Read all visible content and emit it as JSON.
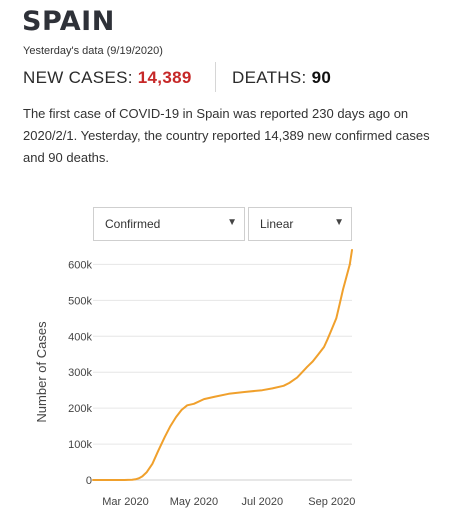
{
  "header": {
    "country": "SPAIN",
    "data_date": "Yesterday's data (9/19/2020)"
  },
  "stats": {
    "new_cases_label": "NEW CASES:",
    "new_cases_value": "14,389",
    "deaths_label": "DEATHS:",
    "deaths_value": "90"
  },
  "summary": "The first case of COVID-19 in Spain was reported 230 days ago on 2020/2/1. Yesterday, the country reported 14,389 new confirmed cases and 90 deaths.",
  "controls": {
    "data_select": {
      "selected": "Confirmed"
    },
    "scale_select": {
      "selected": "Linear"
    }
  },
  "colors": {
    "line": "#f0a02c",
    "grid": "#e6e6e6",
    "new_cases_value": "#c62828"
  },
  "chart_data": {
    "type": "line",
    "ylabel": "Number of Cases",
    "xlabel": "",
    "y_tick_labels": [
      "0",
      "100k",
      "200k",
      "300k",
      "400k",
      "500k",
      "600k"
    ],
    "y_tick_values": [
      0,
      100000,
      200000,
      300000,
      400000,
      500000,
      600000
    ],
    "x_tick_labels": [
      "Mar 2020",
      "May 2020",
      "Jul 2020",
      "Sep 2020"
    ],
    "x_tick_values": [
      "2020-03-01",
      "2020-05-01",
      "2020-07-01",
      "2020-09-01"
    ],
    "xlim": [
      "2020-02-01",
      "2020-09-19"
    ],
    "ylim": [
      0,
      640000
    ],
    "grid": "horizontal",
    "series": [
      {
        "x": [
          "2020-02-01",
          "2020-02-15",
          "2020-02-29",
          "2020-03-07",
          "2020-03-10",
          "2020-03-13",
          "2020-03-16",
          "2020-03-20",
          "2020-03-25",
          "2020-03-30",
          "2020-04-05",
          "2020-04-10",
          "2020-04-15",
          "2020-04-20",
          "2020-04-25",
          "2020-05-01",
          "2020-05-10",
          "2020-05-20",
          "2020-06-01",
          "2020-06-15",
          "2020-07-01",
          "2020-07-10",
          "2020-07-20",
          "2020-07-25",
          "2020-08-01",
          "2020-08-05",
          "2020-08-10",
          "2020-08-15",
          "2020-08-20",
          "2020-08-25",
          "2020-08-28",
          "2020-09-01",
          "2020-09-05",
          "2020-09-08",
          "2020-09-11",
          "2020-09-14",
          "2020-09-17",
          "2020-09-19"
        ],
        "values": [
          1,
          2,
          50,
          500,
          2000,
          5000,
          10000,
          22000,
          45000,
          80000,
          120000,
          150000,
          175000,
          195000,
          208000,
          212000,
          225000,
          232000,
          240000,
          245000,
          250000,
          255000,
          262000,
          270000,
          285000,
          298000,
          315000,
          330000,
          350000,
          370000,
          390000,
          420000,
          450000,
          490000,
          530000,
          565000,
          600000,
          640000
        ]
      }
    ]
  }
}
